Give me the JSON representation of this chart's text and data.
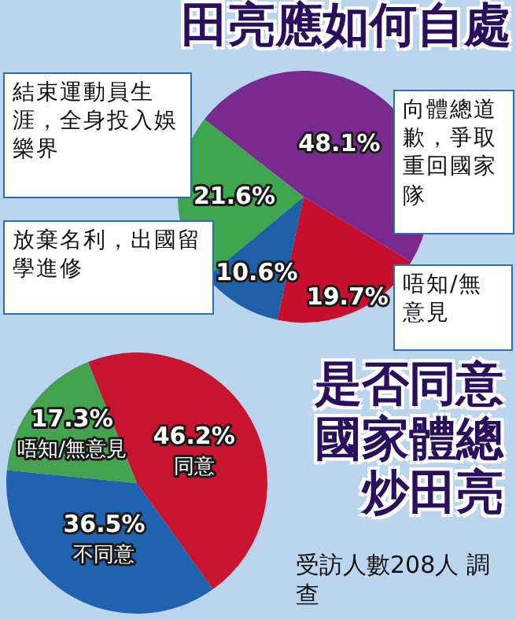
{
  "chart_data": [
    {
      "type": "pie",
      "title": "田亮應如何自處",
      "categories": [
        "向體總道歉，爭取重回國家隊",
        "唔知/無意見",
        "放棄名利，出國留學進修",
        "結束運動員生涯，全身投入娛樂界"
      ],
      "values": [
        48.1,
        19.7,
        10.6,
        21.6
      ],
      "colors": [
        "#7a2a8e",
        "#c8102e",
        "#1f5fa8",
        "#3fa650"
      ],
      "value_labels": [
        "48.1%",
        "19.7%",
        "10.6%",
        "21.6%"
      ]
    },
    {
      "type": "pie",
      "title": "是否同意國家體總炒田亮",
      "categories": [
        "同意",
        "不同意",
        "唔知/無意見"
      ],
      "values": [
        46.2,
        36.5,
        17.3
      ],
      "colors": [
        "#c8142e",
        "#2062b0",
        "#45a24e"
      ],
      "value_labels": [
        "46.2%",
        "36.5%",
        "17.3%"
      ],
      "annotations": [
        "受訪人數208人 調查"
      ]
    }
  ]
}
